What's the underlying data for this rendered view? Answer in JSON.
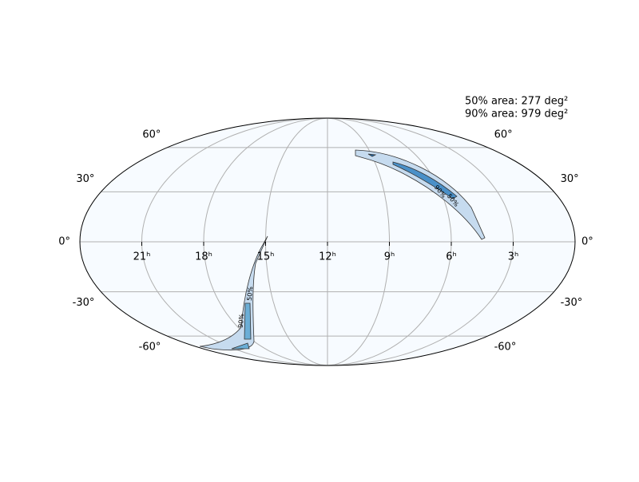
{
  "annotations": [
    "50% area: 277 deg²",
    "90% area: 979 deg²"
  ],
  "ra_ticks": [
    {
      "value": 21,
      "label": "21ʰ"
    },
    {
      "value": 18,
      "label": "18ʰ"
    },
    {
      "value": 15,
      "label": "15ʰ"
    },
    {
      "value": 12,
      "label": "12ʰ"
    },
    {
      "value": 9,
      "label": "9ʰ"
    },
    {
      "value": 6,
      "label": "6ʰ"
    },
    {
      "value": 3,
      "label": "3ʰ"
    }
  ],
  "dec_ticks": [
    {
      "value": 60,
      "label": "60°"
    },
    {
      "value": 30,
      "label": "30°"
    },
    {
      "value": 0,
      "label": "0°"
    },
    {
      "value": -30,
      "label": "-30°"
    },
    {
      "value": -60,
      "label": "-60°"
    }
  ],
  "contour_labels": [
    "90%",
    "50%"
  ]
}
